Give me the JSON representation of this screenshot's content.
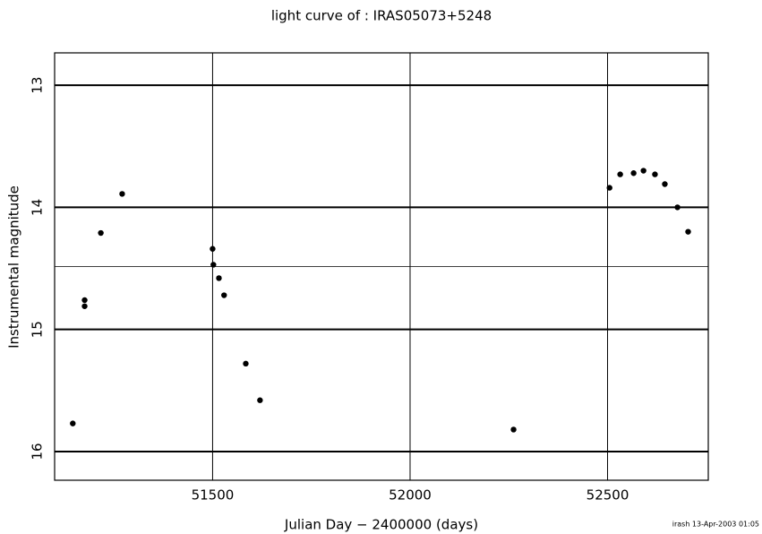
{
  "chart_data": {
    "type": "scatter",
    "title": "light curve of : IRAS05073+5248",
    "x_label": "Julian Day − 2400000 (days)",
    "y_label": "Instrumental magnitude",
    "footer": "irash 13-Apr-2003 01:05",
    "color": "#000000",
    "x": [
      51146,
      51176,
      51176,
      51217,
      51271,
      51500,
      51502,
      51516,
      51529,
      51584,
      51620,
      52262,
      52505,
      52532,
      52566,
      52591,
      52620,
      52645,
      52677,
      52704
    ],
    "values": [
      15.77,
      14.76,
      14.81,
      14.21,
      13.89,
      14.34,
      14.47,
      14.58,
      14.72,
      15.28,
      15.58,
      15.82,
      13.84,
      13.73,
      13.72,
      13.7,
      13.73,
      13.81,
      14.0,
      14.2
    ],
    "xlim": [
      51100,
      52755
    ],
    "ylim": [
      16.235,
      12.735
    ],
    "xticks": [
      51500,
      52000,
      52500
    ],
    "yticks": [
      13,
      14,
      15,
      16
    ],
    "mean_line": 14.485,
    "grid": true
  }
}
